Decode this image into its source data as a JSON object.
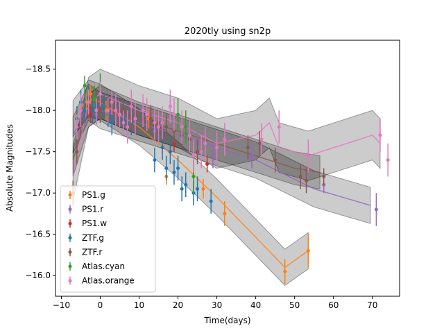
{
  "chart_data": {
    "type": "scatter",
    "title": "2020tly using sn2p",
    "xlabel": "Time(days)",
    "ylabel": "Absolute Magnitudes",
    "xlim": [
      -11.5,
      77.0
    ],
    "ylim": [
      -15.75,
      -18.85
    ],
    "y_inverted": true,
    "xticks": [
      -10,
      0,
      10,
      20,
      30,
      40,
      50,
      60,
      70
    ],
    "yticks": [
      -18.5,
      -18.0,
      -17.5,
      -17.0,
      -16.5,
      -16.0
    ],
    "xtick_labels": [
      "−10",
      "0",
      "10",
      "20",
      "30",
      "40",
      "50",
      "60",
      "70"
    ],
    "ytick_labels": [
      "−18.5",
      "−18.0",
      "−17.5",
      "−17.0",
      "−16.5",
      "−16.0"
    ],
    "grid": false,
    "legend_position": "lower-left",
    "series": [
      {
        "name": "PS1.g",
        "color": "#ff7f0e",
        "points": [
          [
            -3.5,
            -18.1,
            0.1
          ],
          [
            -2.5,
            -18.2,
            0.12
          ],
          [
            1.5,
            -18.0,
            0.12
          ],
          [
            12.5,
            -17.9,
            0.12
          ],
          [
            17,
            -17.2,
            0.1
          ],
          [
            26.5,
            -17.05,
            0.12
          ],
          [
            32,
            -16.75,
            0.15
          ],
          [
            47.5,
            -16.05,
            0.15
          ],
          [
            53.5,
            -16.3,
            0.2
          ]
        ],
        "model": [
          [
            -7,
            -17.9
          ],
          [
            -3,
            -18.15
          ],
          [
            0,
            -18.1
          ],
          [
            10,
            -17.8
          ],
          [
            20,
            -17.4
          ],
          [
            30,
            -16.95
          ],
          [
            47.5,
            -16.1
          ],
          [
            53.5,
            -16.3
          ]
        ],
        "band": 0.22
      },
      {
        "name": "PS1.r",
        "color": "#9467bd",
        "points": [
          [
            -1,
            -17.95,
            0.12
          ],
          [
            13,
            -17.95,
            0.12
          ],
          [
            14,
            -17.75,
            0.12
          ],
          [
            25,
            -17.6,
            0.15
          ],
          [
            29,
            -17.45,
            0.15
          ],
          [
            39,
            -17.45,
            0.15
          ],
          [
            57.5,
            -17.1,
            0.1
          ],
          [
            71,
            -16.8,
            0.2
          ]
        ],
        "model": [
          [
            -7,
            -17.7
          ],
          [
            -3,
            -18.1
          ],
          [
            0,
            -18.0
          ],
          [
            10,
            -17.85
          ],
          [
            20,
            -17.7
          ],
          [
            30,
            -17.55
          ],
          [
            40,
            -17.4
          ],
          [
            55,
            -17.05
          ],
          [
            69.5,
            -16.85
          ]
        ],
        "band": 0.22
      },
      {
        "name": "PS1.w",
        "color": "#d62728",
        "points": [
          [
            -2.5,
            -17.95,
            0.1
          ],
          [
            -1,
            -18.0,
            0.1
          ],
          [
            19,
            -17.6,
            0.1
          ],
          [
            27.5,
            -17.35,
            0.1
          ]
        ],
        "model": [],
        "band": 0
      },
      {
        "name": "ZTF.g",
        "color": "#1f77b4",
        "points": [
          [
            -6,
            -17.9,
            0.15
          ],
          [
            -5,
            -18.1,
            0.15
          ],
          [
            -4,
            -18.0,
            0.15
          ],
          [
            -3,
            -18.15,
            0.15
          ],
          [
            -2,
            -18.0,
            0.15
          ],
          [
            -1,
            -18.05,
            0.15
          ],
          [
            0,
            -18.0,
            0.15
          ],
          [
            1,
            -18.05,
            0.15
          ],
          [
            2,
            -17.95,
            0.15
          ],
          [
            3,
            -17.85,
            0.15
          ],
          [
            4,
            -18.0,
            0.15
          ],
          [
            5,
            -17.95,
            0.15
          ],
          [
            6,
            -17.9,
            0.15
          ],
          [
            7,
            -17.85,
            0.15
          ],
          [
            8,
            -17.85,
            0.15
          ],
          [
            14,
            -17.4,
            0.15
          ],
          [
            16,
            -17.55,
            0.15
          ],
          [
            17,
            -17.3,
            0.15
          ],
          [
            18,
            -17.5,
            0.15
          ],
          [
            19,
            -17.25,
            0.15
          ],
          [
            20,
            -17.3,
            0.15
          ],
          [
            21,
            -17.05,
            0.15
          ],
          [
            22,
            -17.1,
            0.15
          ],
          [
            24,
            -17.0,
            0.15
          ],
          [
            25,
            -17.05,
            0.15
          ],
          [
            28.5,
            -16.9,
            0.15
          ]
        ],
        "model": [],
        "band": 0
      },
      {
        "name": "ZTF.r",
        "color": "#8c564b",
        "points": [
          [
            -7,
            -17.0,
            0.15
          ],
          [
            -6,
            -17.5,
            0.15
          ],
          [
            -5,
            -17.85,
            0.15
          ],
          [
            -3,
            -18.05,
            0.15
          ],
          [
            -1,
            -18.1,
            0.15
          ],
          [
            0,
            -18.0,
            0.15
          ],
          [
            2,
            -18.05,
            0.15
          ],
          [
            4,
            -17.95,
            0.15
          ],
          [
            6,
            -18.0,
            0.15
          ],
          [
            8,
            -17.9,
            0.15
          ],
          [
            13,
            -17.9,
            0.15
          ],
          [
            15,
            -17.85,
            0.15
          ],
          [
            17,
            -17.8,
            0.15
          ],
          [
            19,
            -17.75,
            0.15
          ],
          [
            21,
            -17.7,
            0.15
          ],
          [
            23,
            -17.65,
            0.15
          ],
          [
            25,
            -17.5,
            0.15
          ],
          [
            38,
            -17.55,
            0.15
          ],
          [
            41,
            -17.6,
            0.15
          ],
          [
            45,
            -17.4,
            0.15
          ],
          [
            51.5,
            -17.2,
            0.15
          ],
          [
            53,
            -17.15,
            0.15
          ],
          [
            57.5,
            -17.2,
            0.1
          ]
        ],
        "model": [
          [
            -7,
            -17.4
          ],
          [
            -3,
            -18.0
          ],
          [
            0,
            -18.1
          ],
          [
            10,
            -17.9
          ],
          [
            20,
            -17.75
          ],
          [
            30,
            -17.6
          ],
          [
            40,
            -17.45
          ],
          [
            50,
            -17.3
          ],
          [
            56.5,
            -17.25
          ]
        ],
        "band": 0.2
      },
      {
        "name": "Atlas.cyan",
        "color": "#2ca02c",
        "points": [
          [
            -4,
            -18.3,
            0.12
          ],
          [
            -1.5,
            -18.15,
            0.15
          ],
          [
            0,
            -18.3,
            0.15
          ],
          [
            3,
            -18.1,
            0.12
          ],
          [
            20,
            -17.95,
            0.2
          ],
          [
            22,
            -17.8,
            0.2
          ],
          [
            23,
            -17.7,
            0.2
          ],
          [
            24,
            -17.2,
            0.2
          ]
        ],
        "model": [],
        "band": 0
      },
      {
        "name": "Atlas.orange",
        "color": "#e377c2",
        "points": [
          [
            -6,
            -17.8,
            0.15
          ],
          [
            -5,
            -18.0,
            0.2
          ],
          [
            -3,
            -18.1,
            0.15
          ],
          [
            -1,
            -18.0,
            0.15
          ],
          [
            0,
            -18.2,
            0.15
          ],
          [
            2,
            -18.0,
            0.15
          ],
          [
            3,
            -18.1,
            0.15
          ],
          [
            4,
            -18.0,
            0.2
          ],
          [
            5,
            -17.95,
            0.15
          ],
          [
            6,
            -17.85,
            0.15
          ],
          [
            7,
            -17.8,
            0.2
          ],
          [
            8,
            -18.05,
            0.2
          ],
          [
            9,
            -17.9,
            0.2
          ],
          [
            11,
            -18.0,
            0.2
          ],
          [
            12,
            -17.95,
            0.2
          ],
          [
            14,
            -17.85,
            0.2
          ],
          [
            15,
            -17.8,
            0.2
          ],
          [
            16,
            -17.85,
            0.2
          ],
          [
            18,
            -18.05,
            0.2
          ],
          [
            19,
            -17.95,
            0.2
          ],
          [
            21,
            -17.8,
            0.2
          ],
          [
            23,
            -17.7,
            0.2
          ],
          [
            24,
            -17.45,
            0.2
          ],
          [
            26,
            -17.5,
            0.2
          ],
          [
            27,
            -17.6,
            0.2
          ],
          [
            30,
            -17.55,
            0.2
          ],
          [
            32,
            -17.65,
            0.2
          ],
          [
            41.5,
            -17.65,
            0.2
          ],
          [
            46,
            -17.8,
            0.2
          ],
          [
            53.5,
            -17.45,
            0.2
          ],
          [
            72,
            -17.7,
            0.2
          ],
          [
            74,
            -17.4,
            0.2
          ]
        ],
        "model": [
          [
            -7,
            -17.2
          ],
          [
            -3,
            -18.1
          ],
          [
            0,
            -18.2
          ],
          [
            10,
            -18.0
          ],
          [
            20,
            -17.85
          ],
          [
            30,
            -17.6
          ],
          [
            40,
            -17.7
          ],
          [
            43.5,
            -17.85
          ],
          [
            46,
            -17.55
          ],
          [
            53.5,
            -17.45
          ],
          [
            70,
            -17.7
          ],
          [
            72,
            -17.6
          ]
        ],
        "band": 0.3
      }
    ]
  }
}
